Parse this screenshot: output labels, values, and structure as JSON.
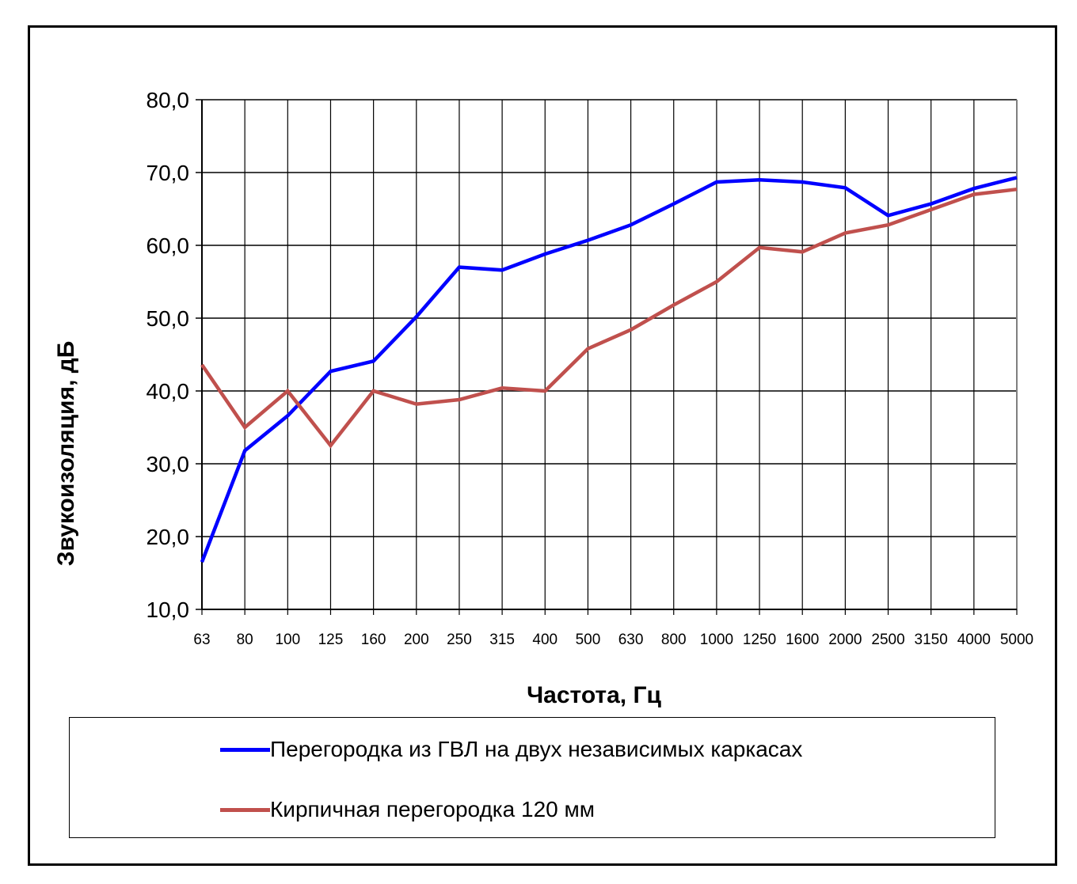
{
  "chart_data": {
    "type": "line",
    "xlabel": "Частота, Гц",
    "ylabel": "Звукоизоляция, дБ",
    "categories": [
      "63",
      "80",
      "100",
      "125",
      "160",
      "200",
      "250",
      "315",
      "400",
      "500",
      "630",
      "800",
      "1000",
      "1250",
      "1600",
      "2000",
      "2500",
      "3150",
      "4000",
      "5000"
    ],
    "ylim": [
      10,
      80
    ],
    "yticks": [
      "10,0",
      "20,0",
      "30,0",
      "40,0",
      "50,0",
      "60,0",
      "70,0",
      "80,0"
    ],
    "grid": true,
    "legend_position": "bottom",
    "series": [
      {
        "name": "Перегородка из ГВЛ на двух независимых каркасах",
        "color": "#0000ff",
        "values": [
          16.5,
          31.8,
          36.6,
          42.7,
          44.1,
          50.2,
          57.0,
          56.6,
          58.8,
          60.7,
          62.8,
          65.7,
          68.7,
          69.0,
          68.7,
          67.9,
          64.1,
          65.7,
          67.8,
          69.3
        ]
      },
      {
        "name": "Кирпичная перегородка 120 мм",
        "color": "#c0504d",
        "values": [
          43.6,
          35.0,
          40.0,
          32.5,
          40.0,
          38.2,
          38.8,
          40.4,
          40.0,
          45.8,
          48.4,
          51.8,
          55.0,
          59.7,
          59.1,
          61.7,
          62.8,
          64.9,
          67.0,
          67.7
        ]
      }
    ]
  }
}
